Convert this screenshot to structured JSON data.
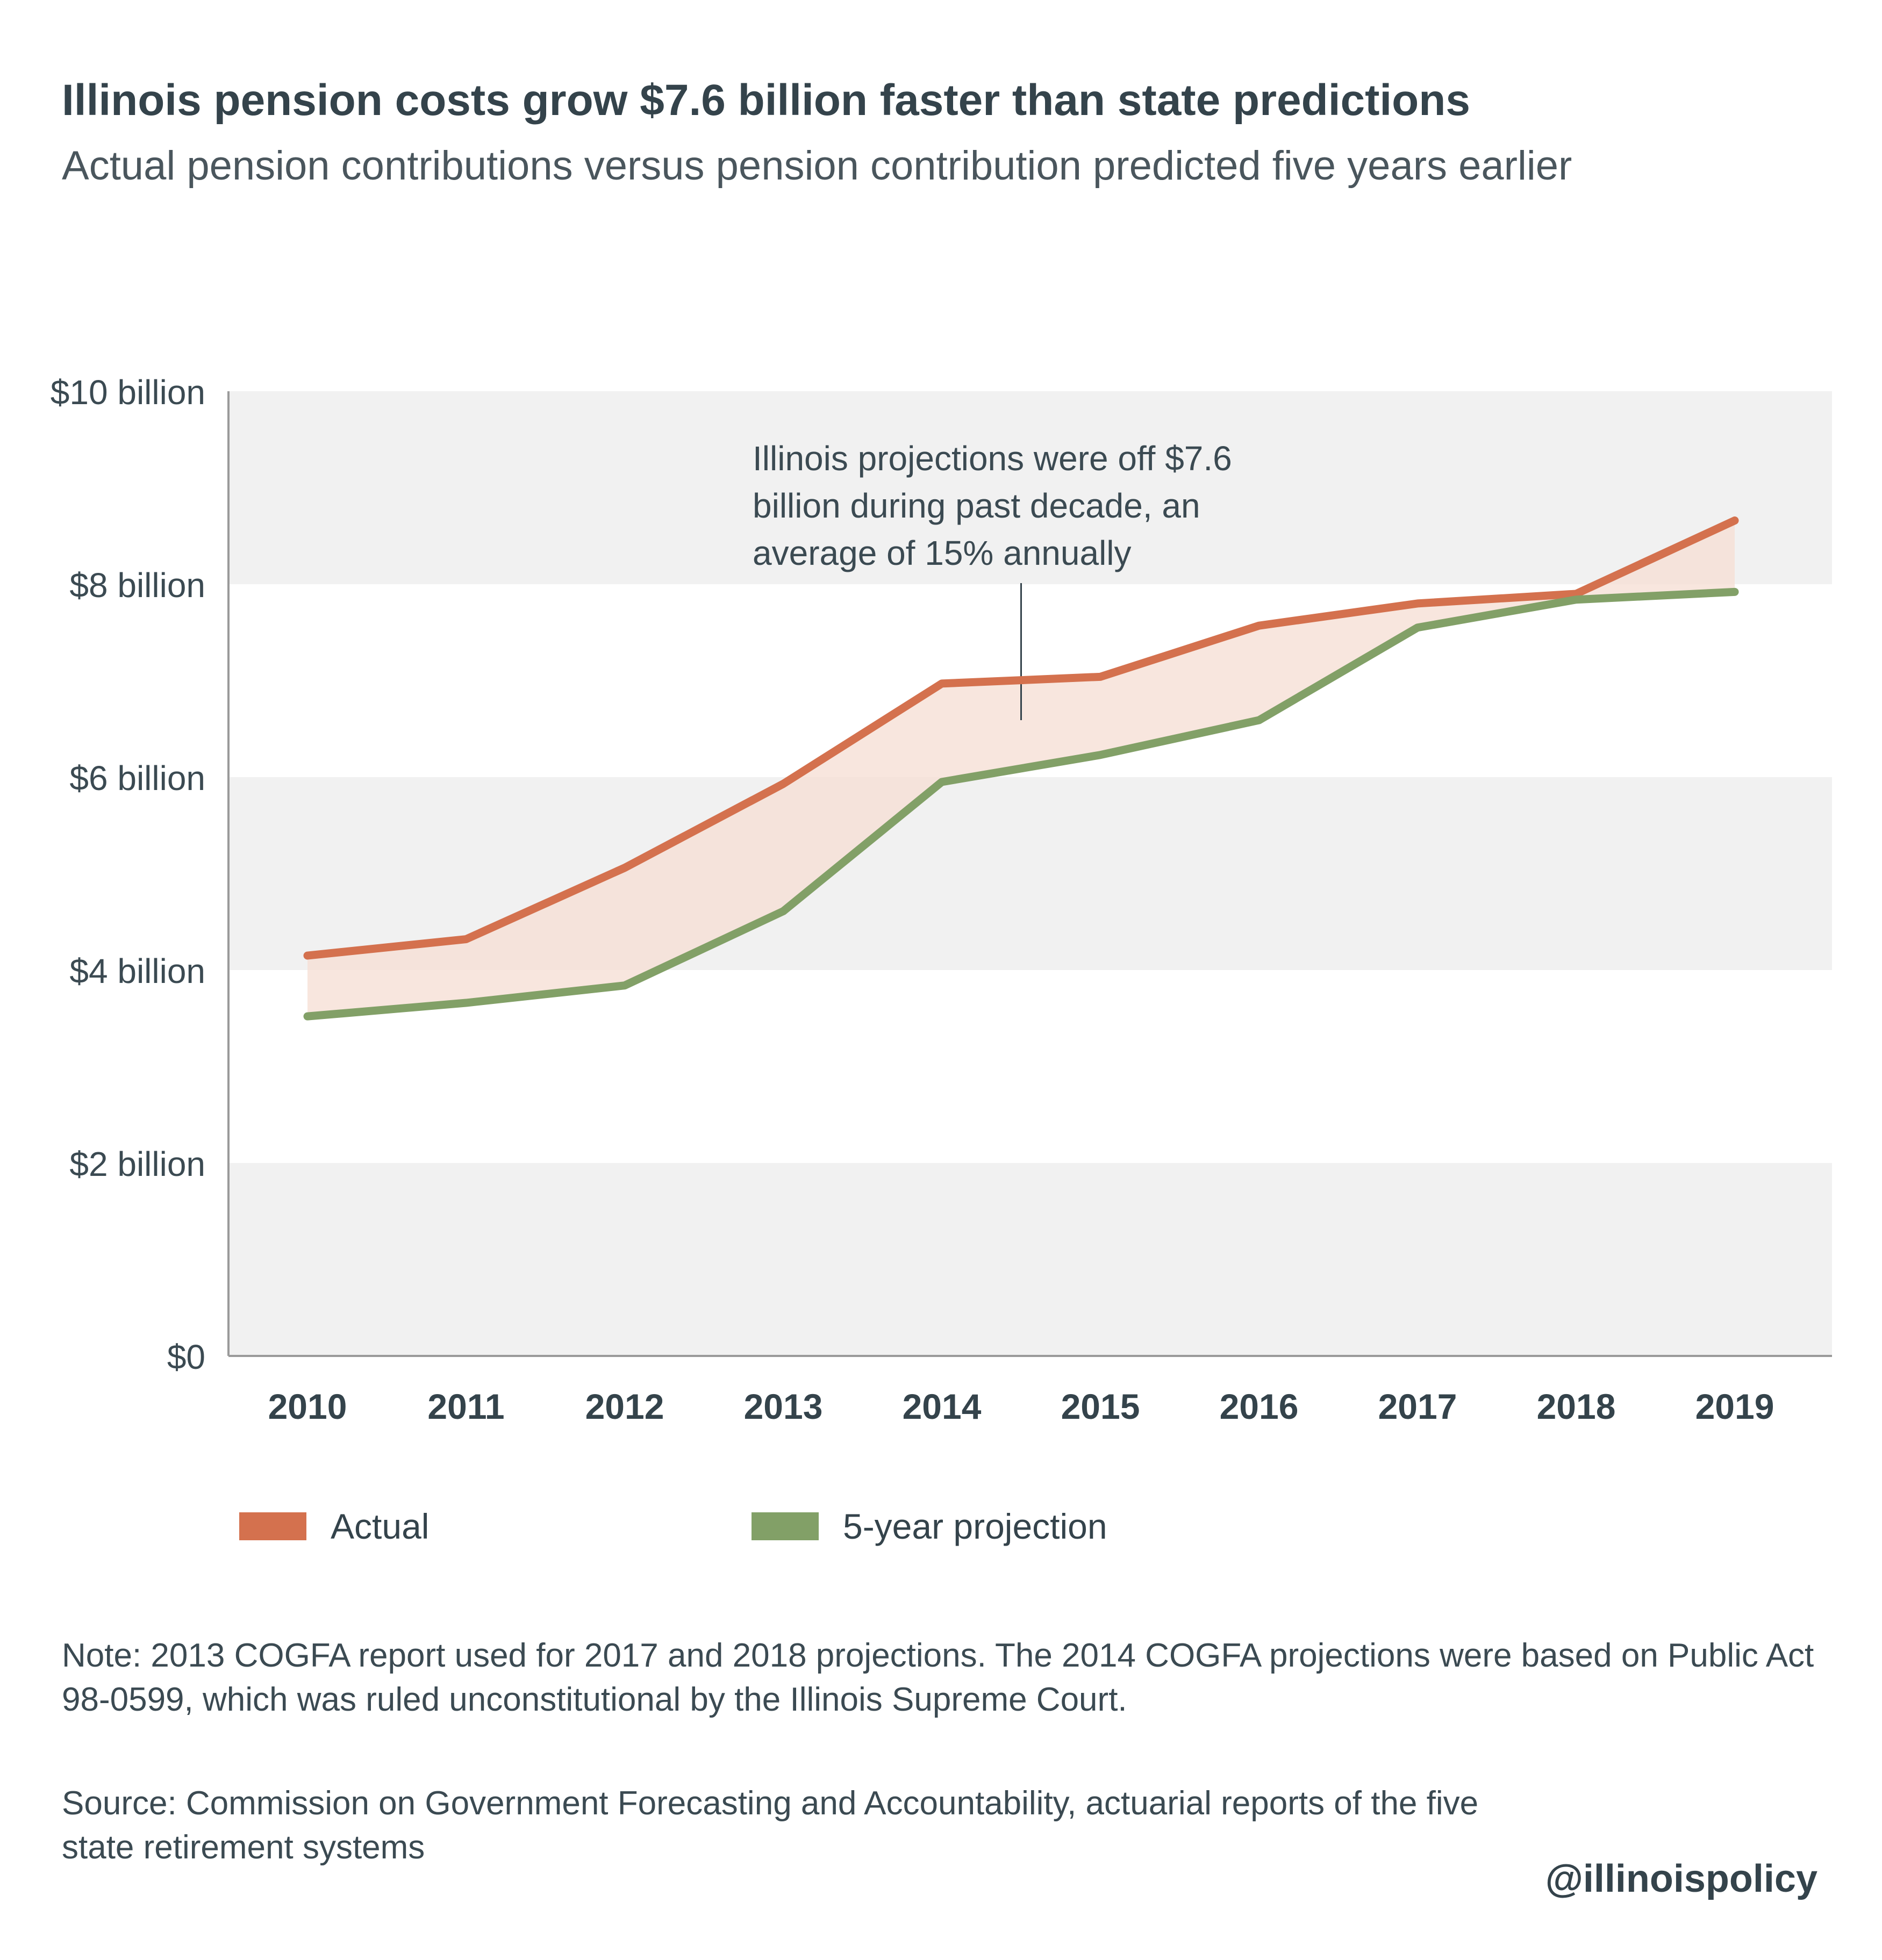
{
  "header": {
    "title": "Illinois pension costs grow $7.6 billion faster than state predictions",
    "subtitle": "Actual pension contributions versus pension contribution predicted five years earlier"
  },
  "colors": {
    "actual": "#d4714e",
    "projection": "#82a067",
    "fill": "#f5ddd3",
    "band": "#f1f1f1",
    "axis": "#9a9a9a"
  },
  "chart_data": {
    "type": "line",
    "title": "Illinois pension costs grow $7.6 billion faster than state predictions",
    "subtitle": "Actual pension contributions versus pension contribution predicted five years earlier",
    "categories": [
      "2010",
      "2011",
      "2012",
      "2013",
      "2014",
      "2015",
      "2016",
      "2017",
      "2018",
      "2019"
    ],
    "series": [
      {
        "name": "Actual",
        "color": "#d4714e",
        "values": [
          4.15,
          4.32,
          5.06,
          5.93,
          6.97,
          7.04,
          7.57,
          7.8,
          7.9,
          8.66
        ]
      },
      {
        "name": "5-year projection",
        "color": "#82a067",
        "values": [
          3.52,
          3.66,
          3.84,
          4.61,
          5.95,
          6.23,
          6.59,
          7.55,
          7.84,
          7.92
        ]
      }
    ],
    "ylim": [
      0,
      10
    ],
    "yticks": [
      0,
      2,
      4,
      6,
      8,
      10
    ],
    "ytick_labels": [
      "$0",
      "$2 billion",
      "$4 billion",
      "$6 billion",
      "$8 billion",
      "$10 billion"
    ],
    "shaded_bands": [
      [
        0,
        2
      ],
      [
        4,
        6
      ],
      [
        8,
        10
      ]
    ],
    "fill_between_series": true,
    "grid": false,
    "legend": "bottom-left",
    "annotation": {
      "lines": [
        "Illinois projections were off $7.6",
        "billion during past decade, an",
        "average of 15% annually"
      ],
      "x": 4.5
    }
  },
  "legend": {
    "actual_label": "Actual",
    "projection_label": "5-year projection"
  },
  "footer": {
    "note": "Note: 2013 COGFA report used for 2017 and 2018 projections. The 2014 COGFA projections were based on Public Act 98-0599, which was ruled unconstitutional by the Illinois Supreme Court.",
    "source": "Source:   Commission on Government Forecasting and Accountability, actuarial reports of the five state retirement systems",
    "handle": "@illinoispolicy"
  }
}
